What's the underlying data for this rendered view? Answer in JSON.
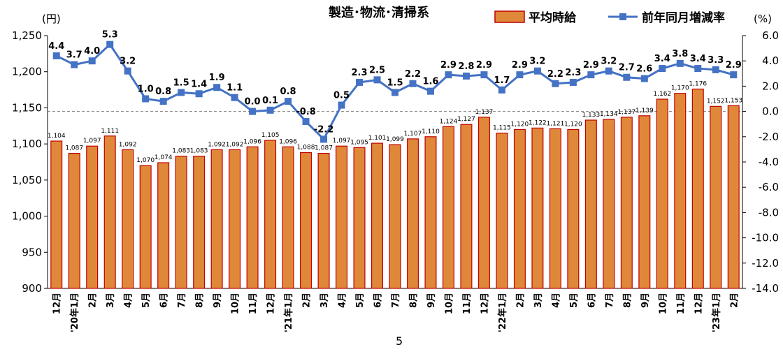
{
  "chart_data": {
    "type": "bar",
    "title": "製造･物流･清掃系",
    "left_unit": "(円)",
    "right_unit": "(%)",
    "categories": [
      "12月",
      "'20年1月",
      "2月",
      "3月",
      "4月",
      "5月",
      "6月",
      "7月",
      "8月",
      "9月",
      "10月",
      "11月",
      "12月",
      "'21年1月",
      "2月",
      "3月",
      "4月",
      "5月",
      "6月",
      "7月",
      "8月",
      "9月",
      "10月",
      "11月",
      "12月",
      "'22年1月",
      "2月",
      "3月",
      "4月",
      "5月",
      "6月",
      "7月",
      "8月",
      "9月",
      "10月",
      "11月",
      "12月",
      "'23年1月",
      "2月"
    ],
    "series": [
      {
        "name": "平均時給",
        "type": "bar",
        "axis": "left",
        "color": "#E0883A",
        "edge_color": "#C00000",
        "values": [
          1104,
          1087,
          1097,
          1111,
          1092,
          1070,
          1074,
          1083,
          1083,
          1092,
          1092,
          1096,
          1105,
          1096,
          1088,
          1087,
          1097,
          1095,
          1101,
          1099,
          1107,
          1110,
          1124,
          1127,
          1137,
          1115,
          1120,
          1122,
          1121,
          1120,
          1133,
          1134,
          1137,
          1139,
          1162,
          1170,
          1176,
          1152,
          1153
        ],
        "labels": [
          "1,104",
          "1,087",
          "1,097",
          "1,111",
          "1,092",
          "1,070",
          "1,074",
          "1,083",
          "1,083",
          "1,092",
          "1,092",
          "1,096",
          "1,105",
          "1,096",
          "1,088",
          "1,087",
          "1,097",
          "1,095",
          "1,101",
          "1,099",
          "1,107",
          "1,110",
          "1,124",
          "1,127",
          "1,137",
          "1,115",
          "1,120",
          "1,122",
          "1,121",
          "1,120",
          "1,133",
          "1,134",
          "1,137",
          "1,139",
          "1,162",
          "1,170",
          "1,176",
          "1,152",
          "1,153"
        ]
      },
      {
        "name": "前年同月増減率",
        "type": "line",
        "axis": "right",
        "color": "#4472C4",
        "values": [
          4.4,
          3.7,
          4.0,
          5.3,
          3.2,
          1.0,
          0.8,
          1.5,
          1.4,
          1.9,
          1.1,
          0.0,
          0.1,
          0.8,
          -0.8,
          -2.2,
          0.5,
          2.3,
          2.5,
          1.5,
          2.2,
          1.6,
          2.9,
          2.8,
          2.9,
          1.7,
          2.9,
          3.2,
          2.2,
          2.3,
          2.9,
          3.2,
          2.7,
          2.6,
          3.4,
          3.8,
          3.4,
          3.3,
          2.9
        ],
        "labels": [
          "4.4",
          "3.7",
          "4.0",
          "5.3",
          "3.2",
          "1.0",
          "0.8",
          "1.5",
          "1.4",
          "1.9",
          "1.1",
          "0.0",
          "0.1",
          "0.8",
          "-0.8",
          "-2.2",
          "0.5",
          "2.3",
          "2.5",
          "1.5",
          "2.2",
          "1.6",
          "2.9",
          "2.8",
          "2.9",
          "1.7",
          "2.9",
          "3.2",
          "2.2",
          "2.3",
          "2.9",
          "3.2",
          "2.7",
          "2.6",
          "3.4",
          "3.8",
          "3.4",
          "3.3",
          "2.9"
        ]
      }
    ],
    "left_axis": {
      "ylim": [
        900,
        1250
      ],
      "ticks": [
        "900",
        "950",
        "1,000",
        "1,050",
        "1,100",
        "1,150",
        "1,200",
        "1,250"
      ]
    },
    "right_axis": {
      "ylim": [
        -14.0,
        6.0
      ],
      "ticks": [
        "-14.0",
        "-12.0",
        "-10.0",
        "-8.0",
        "-6.0",
        "-4.0",
        "-2.0",
        "0.0",
        "2.0",
        "4.0",
        "6.0"
      ]
    },
    "zero_reference_line": true,
    "legend_position": "top-right",
    "page_number": "5"
  }
}
